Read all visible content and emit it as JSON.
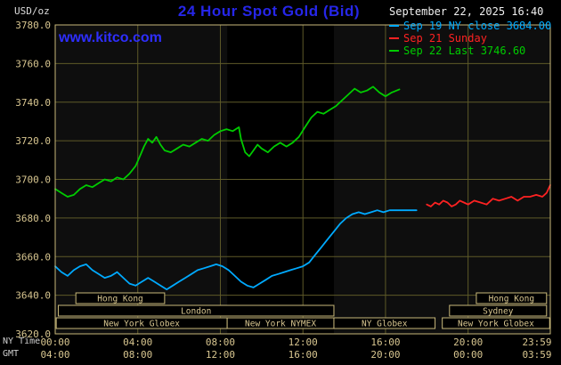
{
  "header": {
    "unit_label": "USD/oz",
    "title": "24 Hour Spot Gold (Bid)",
    "datetime": "September 22, 2025 16:40",
    "watermark": "www.kitco.com"
  },
  "legend": {
    "items": [
      {
        "label": "Sep 19 NY close 3684.00",
        "color": "#00aaff"
      },
      {
        "label": "Sep 21 Sunday",
        "color": "#ff2222"
      },
      {
        "label": "Sep 22 Last 3746.60",
        "color": "#00cc00"
      }
    ]
  },
  "axes": {
    "row_labels": [
      "NY Time",
      "GMT"
    ]
  },
  "colors": {
    "background": "#000000",
    "plot_background": "#0e0e0e",
    "session_band": "#000000",
    "grid": "#5e5a28",
    "frame": "#c8b87a",
    "tick_text": "#d8c690",
    "session_text": "#d8c690",
    "title": "#2626e8",
    "watermark": "#2e2eff",
    "datetime_text": "#f0f0f0",
    "row_label_text": "#cfcfcf"
  },
  "chart_data": {
    "type": "line",
    "title": "24 Hour Spot Gold (Bid)",
    "ylabel": "USD/oz",
    "ylim": [
      3620,
      3780
    ],
    "xlim_hours": [
      0,
      23.983
    ],
    "grid": true,
    "legend_position": "top-right",
    "y_ticks": [
      3620,
      3640,
      3660,
      3680,
      3700,
      3720,
      3740,
      3760,
      3780
    ],
    "y_tick_labels": [
      "3620.0",
      "3640.0",
      "3660.0",
      "3680.0",
      "3700.0",
      "3720.0",
      "3740.0",
      "3760.0",
      "3780.0"
    ],
    "x_ticks": [
      {
        "h": 0,
        "ny": "00:00",
        "gmt": "04:00"
      },
      {
        "h": 4,
        "ny": "04:00",
        "gmt": "08:00"
      },
      {
        "h": 8,
        "ny": "08:00",
        "gmt": "12:00"
      },
      {
        "h": 12,
        "ny": "12:00",
        "gmt": "16:00"
      },
      {
        "h": 16,
        "ny": "16:00",
        "gmt": "20:00"
      },
      {
        "h": 20,
        "ny": "20:00",
        "gmt": "00:00"
      },
      {
        "h": 23.983,
        "ny": "23:59",
        "gmt": "03:59"
      }
    ],
    "shaded_band_hours": [
      8.33,
      13.5
    ],
    "series": [
      {
        "id": "sep19",
        "name": "Sep 19 NY close",
        "close": 3684.0,
        "color": "#00aaff",
        "points": [
          [
            0,
            3655
          ],
          [
            0.3,
            3652
          ],
          [
            0.6,
            3650
          ],
          [
            0.9,
            3653
          ],
          [
            1.2,
            3655
          ],
          [
            1.5,
            3656
          ],
          [
            1.8,
            3653
          ],
          [
            2.1,
            3651
          ],
          [
            2.4,
            3649
          ],
          [
            2.7,
            3650
          ],
          [
            3.0,
            3652
          ],
          [
            3.3,
            3649
          ],
          [
            3.6,
            3646
          ],
          [
            3.9,
            3645
          ],
          [
            4.2,
            3647
          ],
          [
            4.5,
            3649
          ],
          [
            4.8,
            3647
          ],
          [
            5.1,
            3645
          ],
          [
            5.4,
            3643
          ],
          [
            5.7,
            3645
          ],
          [
            6.0,
            3647
          ],
          [
            6.3,
            3649
          ],
          [
            6.6,
            3651
          ],
          [
            6.9,
            3653
          ],
          [
            7.2,
            3654
          ],
          [
            7.5,
            3655
          ],
          [
            7.8,
            3656
          ],
          [
            8.1,
            3655
          ],
          [
            8.4,
            3653
          ],
          [
            8.7,
            3650
          ],
          [
            9.0,
            3647
          ],
          [
            9.3,
            3645
          ],
          [
            9.6,
            3644
          ],
          [
            9.9,
            3646
          ],
          [
            10.2,
            3648
          ],
          [
            10.5,
            3650
          ],
          [
            10.8,
            3651
          ],
          [
            11.1,
            3652
          ],
          [
            11.4,
            3653
          ],
          [
            11.7,
            3654
          ],
          [
            12.0,
            3655
          ],
          [
            12.3,
            3657
          ],
          [
            12.6,
            3661
          ],
          [
            12.9,
            3665
          ],
          [
            13.2,
            3669
          ],
          [
            13.5,
            3673
          ],
          [
            13.8,
            3677
          ],
          [
            14.1,
            3680
          ],
          [
            14.4,
            3682
          ],
          [
            14.7,
            3683
          ],
          [
            15.0,
            3682
          ],
          [
            15.3,
            3683
          ],
          [
            15.6,
            3684
          ],
          [
            15.9,
            3683
          ],
          [
            16.2,
            3684
          ],
          [
            16.6,
            3684
          ],
          [
            17.0,
            3684
          ],
          [
            17.5,
            3684
          ]
        ]
      },
      {
        "id": "sep21",
        "name": "Sep 21 Sunday",
        "color": "#ff2222",
        "points": [
          [
            18.0,
            3687
          ],
          [
            18.2,
            3686
          ],
          [
            18.4,
            3688
          ],
          [
            18.6,
            3687
          ],
          [
            18.8,
            3689
          ],
          [
            19.0,
            3688
          ],
          [
            19.2,
            3686
          ],
          [
            19.4,
            3687
          ],
          [
            19.6,
            3689
          ],
          [
            19.8,
            3688
          ],
          [
            20.0,
            3687
          ],
          [
            20.3,
            3689
          ],
          [
            20.6,
            3688
          ],
          [
            20.9,
            3687
          ],
          [
            21.2,
            3690
          ],
          [
            21.5,
            3689
          ],
          [
            21.8,
            3690
          ],
          [
            22.1,
            3691
          ],
          [
            22.4,
            3689
          ],
          [
            22.7,
            3691
          ],
          [
            23.0,
            3691
          ],
          [
            23.3,
            3692
          ],
          [
            23.6,
            3691
          ],
          [
            23.8,
            3693
          ],
          [
            23.98,
            3697
          ]
        ]
      },
      {
        "id": "sep22",
        "name": "Sep 22 Last",
        "last": 3746.6,
        "color": "#00cc00",
        "points": [
          [
            0,
            3695
          ],
          [
            0.3,
            3693
          ],
          [
            0.6,
            3691
          ],
          [
            0.9,
            3692
          ],
          [
            1.2,
            3695
          ],
          [
            1.5,
            3697
          ],
          [
            1.8,
            3696
          ],
          [
            2.1,
            3698
          ],
          [
            2.4,
            3700
          ],
          [
            2.7,
            3699
          ],
          [
            3.0,
            3701
          ],
          [
            3.3,
            3700
          ],
          [
            3.6,
            3703
          ],
          [
            3.9,
            3707
          ],
          [
            4.1,
            3712
          ],
          [
            4.3,
            3717
          ],
          [
            4.5,
            3721
          ],
          [
            4.7,
            3719
          ],
          [
            4.9,
            3722
          ],
          [
            5.1,
            3718
          ],
          [
            5.3,
            3715
          ],
          [
            5.6,
            3714
          ],
          [
            5.9,
            3716
          ],
          [
            6.2,
            3718
          ],
          [
            6.5,
            3717
          ],
          [
            6.8,
            3719
          ],
          [
            7.1,
            3721
          ],
          [
            7.4,
            3720
          ],
          [
            7.7,
            3723
          ],
          [
            8.0,
            3725
          ],
          [
            8.3,
            3726
          ],
          [
            8.6,
            3725
          ],
          [
            8.9,
            3727
          ],
          [
            9.0,
            3721
          ],
          [
            9.2,
            3714
          ],
          [
            9.4,
            3712
          ],
          [
            9.6,
            3715
          ],
          [
            9.8,
            3718
          ],
          [
            10.0,
            3716
          ],
          [
            10.3,
            3714
          ],
          [
            10.6,
            3717
          ],
          [
            10.9,
            3719
          ],
          [
            11.2,
            3717
          ],
          [
            11.5,
            3719
          ],
          [
            11.8,
            3722
          ],
          [
            12.1,
            3727
          ],
          [
            12.4,
            3732
          ],
          [
            12.7,
            3735
          ],
          [
            13.0,
            3734
          ],
          [
            13.3,
            3736
          ],
          [
            13.6,
            3738
          ],
          [
            13.9,
            3741
          ],
          [
            14.2,
            3744
          ],
          [
            14.5,
            3747
          ],
          [
            14.8,
            3745
          ],
          [
            15.1,
            3746
          ],
          [
            15.4,
            3748
          ],
          [
            15.7,
            3745
          ],
          [
            16.0,
            3743
          ],
          [
            16.3,
            3745
          ],
          [
            16.67,
            3746.6
          ]
        ]
      }
    ],
    "sessions": [
      {
        "row": 0,
        "from": 1.0,
        "to": 5.3,
        "label": "Hong Kong"
      },
      {
        "row": 0,
        "from": 20.4,
        "to": 23.8,
        "label": "Hong Kong"
      },
      {
        "row": 1,
        "from": 0.15,
        "to": 13.5,
        "label": "London"
      },
      {
        "row": 1,
        "from": 19.1,
        "to": 23.8,
        "label": "Sydney"
      },
      {
        "row": 2,
        "from": 0.05,
        "to": 8.33,
        "label": "New York Globex"
      },
      {
        "row": 2,
        "from": 8.33,
        "to": 13.5,
        "label": "New York NYMEX"
      },
      {
        "row": 2,
        "from": 13.5,
        "to": 18.4,
        "label": "NY Globex"
      },
      {
        "row": 2,
        "from": 18.75,
        "to": 23.95,
        "label": "New York Globex"
      }
    ]
  }
}
